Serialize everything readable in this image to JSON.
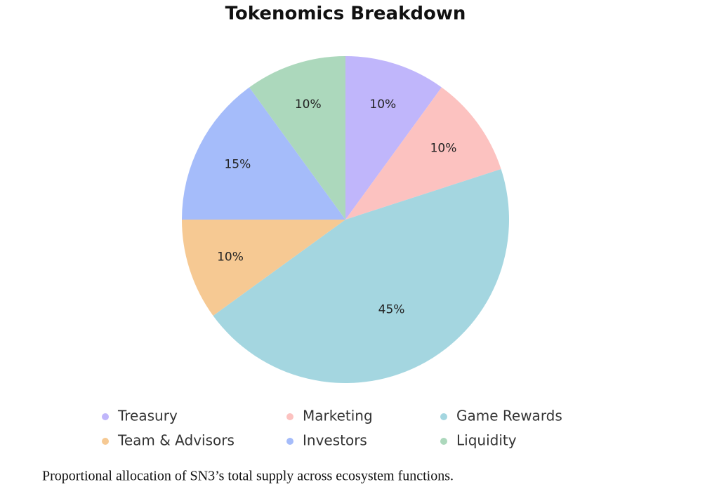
{
  "chart_data": {
    "type": "pie",
    "title": "Tokenomics Breakdown",
    "categories": [
      "Treasury",
      "Marketing",
      "Game Rewards",
      "Team & Advisors",
      "Investors",
      "Liquidity"
    ],
    "values": [
      10,
      10,
      45,
      10,
      15,
      10
    ],
    "value_labels": [
      "10%",
      "10%",
      "45%",
      "10%",
      "15%",
      "10%"
    ],
    "colors": [
      "#c0b6fb",
      "#fcc2c0",
      "#a4d6e0",
      "#f6c993",
      "#a5bcfa",
      "#acd8bc"
    ]
  },
  "caption": "Proportional allocation of SN3’s total supply across ecosystem functions."
}
